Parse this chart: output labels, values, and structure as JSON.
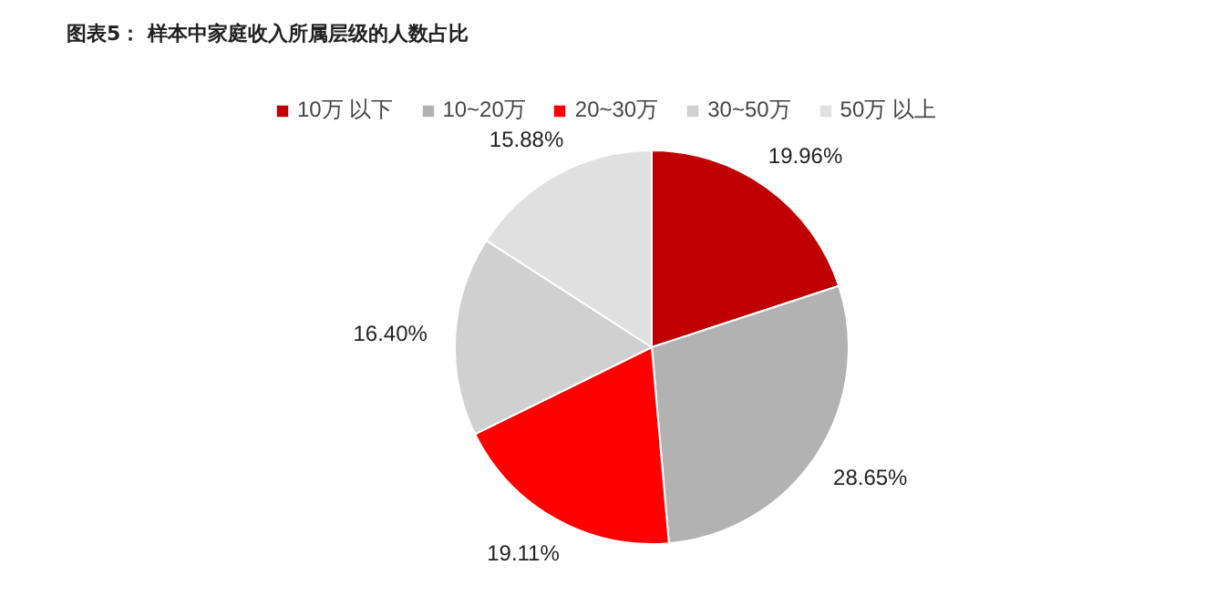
{
  "chart_data": {
    "type": "pie",
    "title": "图表5：  样本中家庭收入所属层级的人数占比",
    "categories": [
      "10万 以下",
      "10~20万",
      "20~30万",
      "30~50万",
      "50万 以上"
    ],
    "values": [
      19.96,
      28.65,
      19.11,
      16.4,
      15.88
    ],
    "value_labels": [
      "19.96%",
      "28.65%",
      "19.11%",
      "16.40%",
      "15.88%"
    ],
    "colors": [
      "#c00000",
      "#b2b2b2",
      "#ff0000",
      "#d0d0d0",
      "#e0e0e0"
    ],
    "legend": "top"
  }
}
